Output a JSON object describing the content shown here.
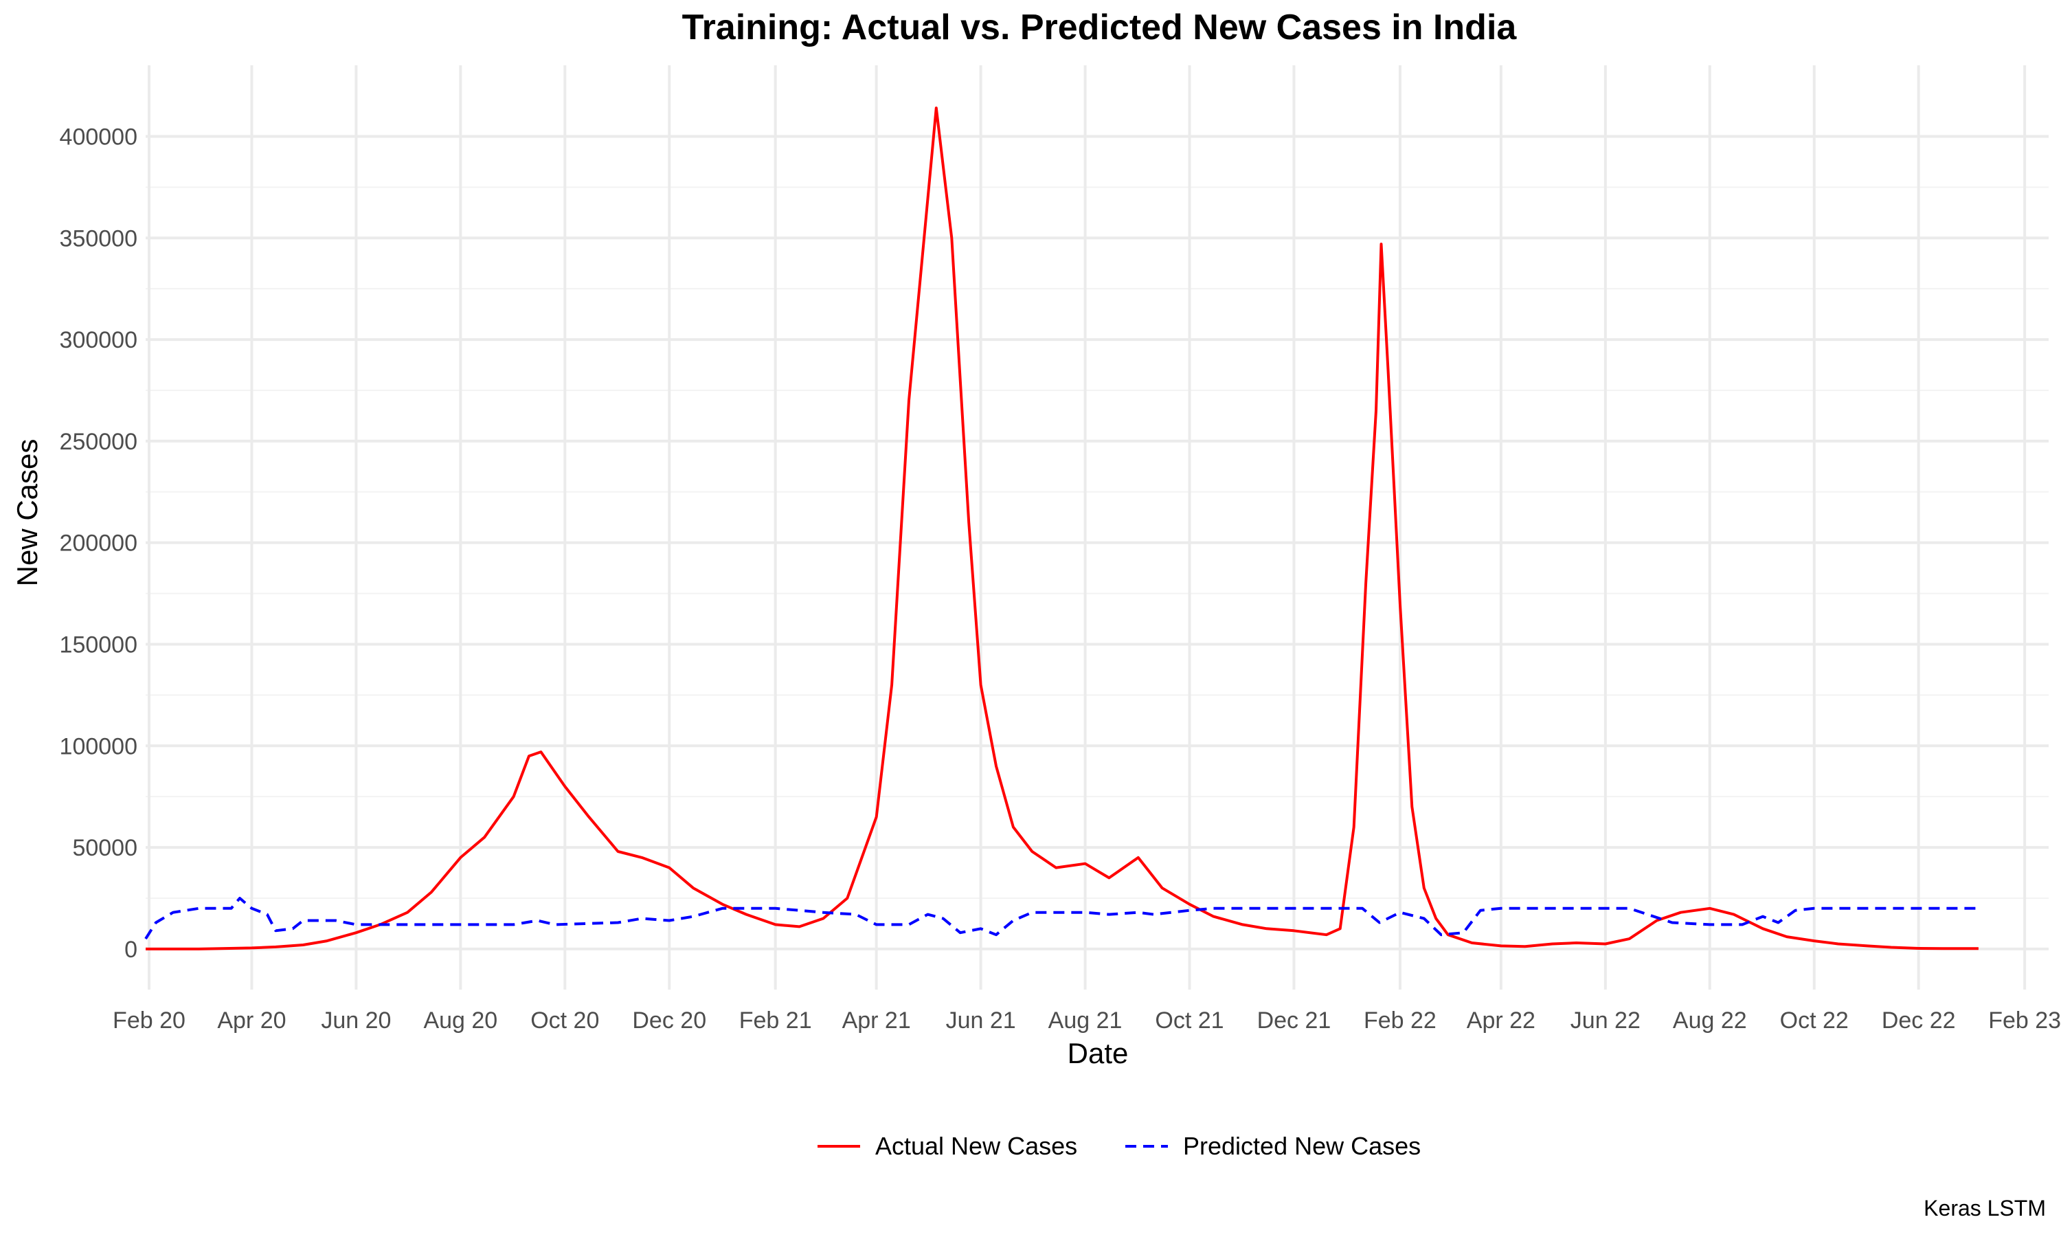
{
  "chart_data": {
    "type": "line",
    "title": "Training: Actual vs. Predicted New Cases in India",
    "xlabel": "Date",
    "ylabel": "New Cases",
    "caption": "Keras LSTM",
    "xlim": [
      "2020-01-30",
      "2023-02-15"
    ],
    "ylim": [
      -20000,
      435000
    ],
    "x_ticks": [
      "Feb 20",
      "Apr 20",
      "Jun 20",
      "Aug 20",
      "Oct 20",
      "Dec 20",
      "Feb 21",
      "Apr 21",
      "Jun 21",
      "Aug 21",
      "Oct 21",
      "Dec 21",
      "Feb 22",
      "Apr 22",
      "Jun 22",
      "Aug 22",
      "Oct 22",
      "Dec 22",
      "Feb 23"
    ],
    "x_tick_dates": [
      "2020-02-01",
      "2020-04-01",
      "2020-06-01",
      "2020-08-01",
      "2020-10-01",
      "2020-12-01",
      "2021-02-01",
      "2021-04-01",
      "2021-06-01",
      "2021-08-01",
      "2021-10-01",
      "2021-12-01",
      "2022-02-01",
      "2022-04-01",
      "2022-06-01",
      "2022-08-01",
      "2022-10-01",
      "2022-12-01",
      "2023-02-01"
    ],
    "y_ticks": [
      0,
      50000,
      100000,
      150000,
      200000,
      250000,
      300000,
      350000,
      400000
    ],
    "y_tick_labels": [
      "0",
      "50000",
      "100000",
      "150000",
      "200000",
      "250000",
      "300000",
      "350000",
      "400000"
    ],
    "grid": true,
    "legend_position": "bottom",
    "series": [
      {
        "name": "Actual New Cases",
        "color": "#ff0000",
        "style": "solid",
        "points": [
          [
            "2020-01-30",
            0
          ],
          [
            "2020-03-01",
            0
          ],
          [
            "2020-04-01",
            500
          ],
          [
            "2020-04-15",
            1000
          ],
          [
            "2020-05-01",
            2000
          ],
          [
            "2020-05-15",
            4000
          ],
          [
            "2020-06-01",
            8000
          ],
          [
            "2020-06-15",
            12000
          ],
          [
            "2020-07-01",
            18000
          ],
          [
            "2020-07-15",
            28000
          ],
          [
            "2020-08-01",
            45000
          ],
          [
            "2020-08-15",
            55000
          ],
          [
            "2020-09-01",
            75000
          ],
          [
            "2020-09-10",
            95000
          ],
          [
            "2020-09-17",
            97000
          ],
          [
            "2020-10-01",
            80000
          ],
          [
            "2020-10-15",
            65000
          ],
          [
            "2020-11-01",
            48000
          ],
          [
            "2020-11-15",
            45000
          ],
          [
            "2020-12-01",
            40000
          ],
          [
            "2020-12-15",
            30000
          ],
          [
            "2021-01-01",
            22000
          ],
          [
            "2021-01-15",
            17000
          ],
          [
            "2021-02-01",
            12000
          ],
          [
            "2021-02-15",
            11000
          ],
          [
            "2021-03-01",
            15000
          ],
          [
            "2021-03-15",
            25000
          ],
          [
            "2021-04-01",
            65000
          ],
          [
            "2021-04-10",
            130000
          ],
          [
            "2021-04-20",
            270000
          ],
          [
            "2021-04-30",
            360000
          ],
          [
            "2021-05-06",
            414000
          ],
          [
            "2021-05-15",
            350000
          ],
          [
            "2021-05-25",
            210000
          ],
          [
            "2021-06-01",
            130000
          ],
          [
            "2021-06-10",
            90000
          ],
          [
            "2021-06-20",
            60000
          ],
          [
            "2021-07-01",
            48000
          ],
          [
            "2021-07-15",
            40000
          ],
          [
            "2021-08-01",
            42000
          ],
          [
            "2021-08-15",
            35000
          ],
          [
            "2021-09-01",
            45000
          ],
          [
            "2021-09-15",
            30000
          ],
          [
            "2021-10-01",
            22000
          ],
          [
            "2021-10-15",
            16000
          ],
          [
            "2021-11-01",
            12000
          ],
          [
            "2021-11-15",
            10000
          ],
          [
            "2021-12-01",
            9000
          ],
          [
            "2021-12-20",
            7000
          ],
          [
            "2021-12-28",
            10000
          ],
          [
            "2022-01-05",
            60000
          ],
          [
            "2022-01-12",
            180000
          ],
          [
            "2022-01-18",
            265000
          ],
          [
            "2022-01-21",
            347000
          ],
          [
            "2022-01-25",
            285000
          ],
          [
            "2022-02-01",
            170000
          ],
          [
            "2022-02-08",
            70000
          ],
          [
            "2022-02-15",
            30000
          ],
          [
            "2022-02-22",
            15000
          ],
          [
            "2022-03-01",
            7000
          ],
          [
            "2022-03-15",
            3000
          ],
          [
            "2022-04-01",
            1500
          ],
          [
            "2022-04-15",
            1200
          ],
          [
            "2022-05-01",
            2500
          ],
          [
            "2022-05-15",
            3000
          ],
          [
            "2022-06-01",
            2500
          ],
          [
            "2022-06-15",
            5000
          ],
          [
            "2022-07-01",
            14000
          ],
          [
            "2022-07-15",
            18000
          ],
          [
            "2022-08-01",
            20000
          ],
          [
            "2022-08-15",
            17000
          ],
          [
            "2022-09-01",
            10000
          ],
          [
            "2022-09-15",
            6000
          ],
          [
            "2022-10-01",
            4000
          ],
          [
            "2022-10-15",
            2500
          ],
          [
            "2022-11-01",
            1500
          ],
          [
            "2022-11-15",
            800
          ],
          [
            "2022-12-01",
            300
          ],
          [
            "2022-12-15",
            200
          ],
          [
            "2023-01-05",
            200
          ]
        ]
      },
      {
        "name": "Predicted New Cases",
        "color": "#0000ff",
        "style": "dashed",
        "points": [
          [
            "2020-01-30",
            5000
          ],
          [
            "2020-02-05",
            13000
          ],
          [
            "2020-02-15",
            18000
          ],
          [
            "2020-03-01",
            20000
          ],
          [
            "2020-03-20",
            20000
          ],
          [
            "2020-03-25",
            25000
          ],
          [
            "2020-04-01",
            20000
          ],
          [
            "2020-04-10",
            17000
          ],
          [
            "2020-04-15",
            9000
          ],
          [
            "2020-04-25",
            10000
          ],
          [
            "2020-05-01",
            14000
          ],
          [
            "2020-05-20",
            14000
          ],
          [
            "2020-06-01",
            12000
          ],
          [
            "2020-08-01",
            12000
          ],
          [
            "2020-09-01",
            12000
          ],
          [
            "2020-09-15",
            14000
          ],
          [
            "2020-09-25",
            12000
          ],
          [
            "2020-11-01",
            13000
          ],
          [
            "2020-11-15",
            15000
          ],
          [
            "2020-12-01",
            14000
          ],
          [
            "2020-12-15",
            16000
          ],
          [
            "2021-01-01",
            20000
          ],
          [
            "2021-02-01",
            20000
          ],
          [
            "2021-03-01",
            18000
          ],
          [
            "2021-03-20",
            17000
          ],
          [
            "2021-04-01",
            12000
          ],
          [
            "2021-04-20",
            12000
          ],
          [
            "2021-05-01",
            17000
          ],
          [
            "2021-05-10",
            15000
          ],
          [
            "2021-05-20",
            8000
          ],
          [
            "2021-06-01",
            10000
          ],
          [
            "2021-06-10",
            7000
          ],
          [
            "2021-06-20",
            14000
          ],
          [
            "2021-07-01",
            18000
          ],
          [
            "2021-08-01",
            18000
          ],
          [
            "2021-08-15",
            17000
          ],
          [
            "2021-09-01",
            18000
          ],
          [
            "2021-09-10",
            17000
          ],
          [
            "2021-10-01",
            19000
          ],
          [
            "2021-10-15",
            20000
          ],
          [
            "2021-12-20",
            20000
          ],
          [
            "2022-01-10",
            20000
          ],
          [
            "2022-01-20",
            13000
          ],
          [
            "2022-02-01",
            18000
          ],
          [
            "2022-02-15",
            15000
          ],
          [
            "2022-02-25",
            7000
          ],
          [
            "2022-03-10",
            8000
          ],
          [
            "2022-03-20",
            19000
          ],
          [
            "2022-04-01",
            20000
          ],
          [
            "2022-06-15",
            20000
          ],
          [
            "2022-07-10",
            13000
          ],
          [
            "2022-08-01",
            12000
          ],
          [
            "2022-08-20",
            12000
          ],
          [
            "2022-09-01",
            16000
          ],
          [
            "2022-09-10",
            13000
          ],
          [
            "2022-09-20",
            19000
          ],
          [
            "2022-10-01",
            20000
          ],
          [
            "2023-01-05",
            20000
          ]
        ]
      }
    ]
  }
}
